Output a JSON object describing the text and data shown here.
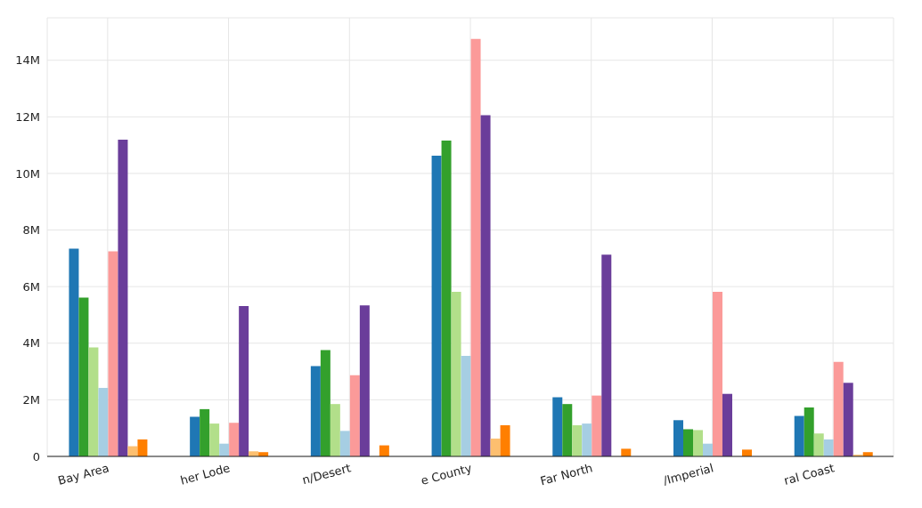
{
  "chart_data": {
    "type": "bar",
    "categories": [
      "Bay Area",
      "her Lode",
      "n/Desert",
      "e County",
      "Far North",
      "/Imperial",
      "ral Coast"
    ],
    "series": [
      {
        "color": "#1f77b4",
        "values": [
          7340000,
          1400000,
          3190000,
          10630000,
          2090000,
          1280000,
          1430000
        ]
      },
      {
        "color": "#33a02c",
        "values": [
          5610000,
          1670000,
          3760000,
          11160000,
          1850000,
          960000,
          1730000
        ]
      },
      {
        "color": "#b2df8a",
        "values": [
          3850000,
          1160000,
          1850000,
          5820000,
          1100000,
          930000,
          810000
        ]
      },
      {
        "color": "#a6cee3",
        "values": [
          2420000,
          450000,
          900000,
          3550000,
          1160000,
          450000,
          600000
        ]
      },
      {
        "color": "#fb9a99",
        "values": [
          7250000,
          1190000,
          2870000,
          14750000,
          2150000,
          5820000,
          3340000
        ]
      },
      {
        "color": "#6a3d9a",
        "values": [
          11190000,
          5310000,
          5340000,
          12060000,
          7130000,
          2210000,
          2600000
        ]
      },
      {
        "color": "#fdbf6f",
        "values": [
          360000,
          180000,
          null,
          630000,
          0,
          0,
          60000
        ]
      },
      {
        "color": "#ff7f00",
        "values": [
          600000,
          150000,
          390000,
          1100000,
          270000,
          240000,
          150000
        ]
      }
    ],
    "ylim": [
      0,
      15500000
    ],
    "yticks": [
      {
        "value": 0,
        "label": "0"
      },
      {
        "value": 2000000,
        "label": "2M"
      },
      {
        "value": 4000000,
        "label": "4M"
      },
      {
        "value": 6000000,
        "label": "6M"
      },
      {
        "value": 8000000,
        "label": "8M"
      },
      {
        "value": 10000000,
        "label": "10M"
      },
      {
        "value": 12000000,
        "label": "12M"
      },
      {
        "value": 14000000,
        "label": "14M"
      }
    ],
    "grid": true
  }
}
